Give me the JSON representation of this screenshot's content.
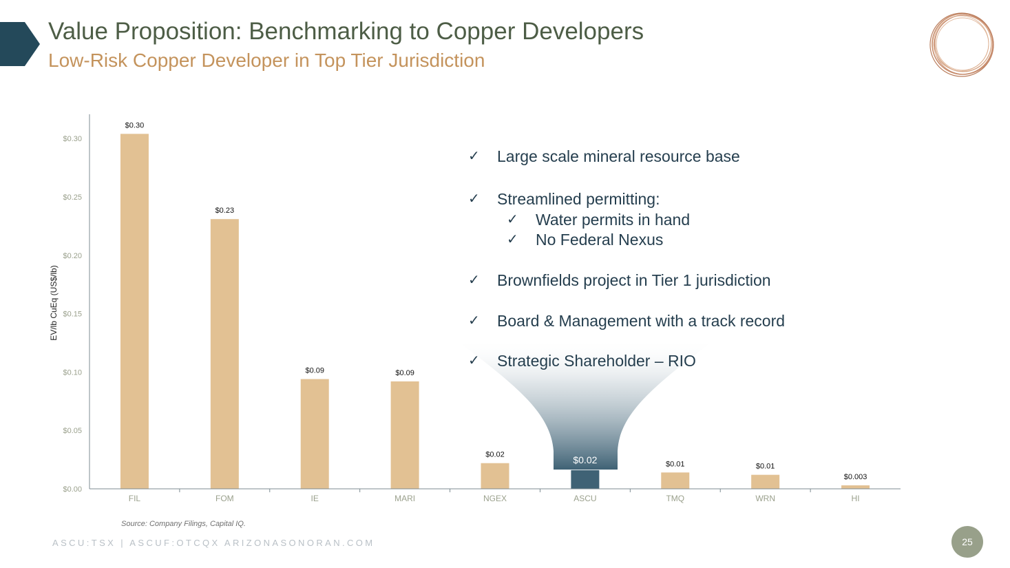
{
  "header": {
    "title": "Value Proposition: Benchmarking to Copper Developers",
    "subtitle": "Low-Risk Copper Developer in Top Tier Jurisdiction"
  },
  "colors": {
    "bar": "#e2c193",
    "highlight_bar": "#3f6275",
    "axis_text": "#9aa08c",
    "title": "#4d5d46",
    "subtitle": "#c4935c",
    "accent": "#24495a"
  },
  "chart_data": {
    "type": "bar",
    "categories": [
      "FIL",
      "FOM",
      "IE",
      "MARI",
      "NGEX",
      "ASCU",
      "TMQ",
      "WRN",
      "HI"
    ],
    "values": [
      0.304,
      0.231,
      0.094,
      0.092,
      0.022,
      0.016,
      0.014,
      0.012,
      0.003
    ],
    "data_labels": [
      "$0.30",
      "$0.23",
      "$0.09",
      "$0.09",
      "$0.02",
      "$0.02",
      "$0.01",
      "$0.01",
      "$0.003"
    ],
    "highlight": "ASCU",
    "ylabel": "EV/lb CuEq (US$/lb)",
    "xlabel": "",
    "ylim": [
      0,
      0.32
    ],
    "yticks": [
      0,
      0.05,
      0.1,
      0.15,
      0.2,
      0.25,
      0.3
    ],
    "ytick_labels": [
      "$0.00",
      "$0.05",
      "$0.10",
      "$0.15",
      "$0.20",
      "$0.25",
      "$0.30"
    ],
    "grid": false,
    "legend": "none"
  },
  "bullets": [
    {
      "text": "Large scale mineral resource base",
      "level": 0
    },
    {
      "text": "Streamlined permitting:",
      "level": 0
    },
    {
      "text": "Water permits in hand",
      "level": 1
    },
    {
      "text": "No Federal Nexus",
      "level": 1
    },
    {
      "text": "Brownfields project in Tier 1 jurisdiction",
      "level": 0
    },
    {
      "text": "Board & Management with a track record",
      "level": 0
    },
    {
      "text": "Strategic Shareholder – RIO",
      "level": 0
    }
  ],
  "check_mark": "✓",
  "source": "Source: Company Filings, Capital IQ.",
  "footer": "ASCU:TSX | ASCUF:OTCQX   ARIZONASONORAN.COM",
  "page_number": "25"
}
